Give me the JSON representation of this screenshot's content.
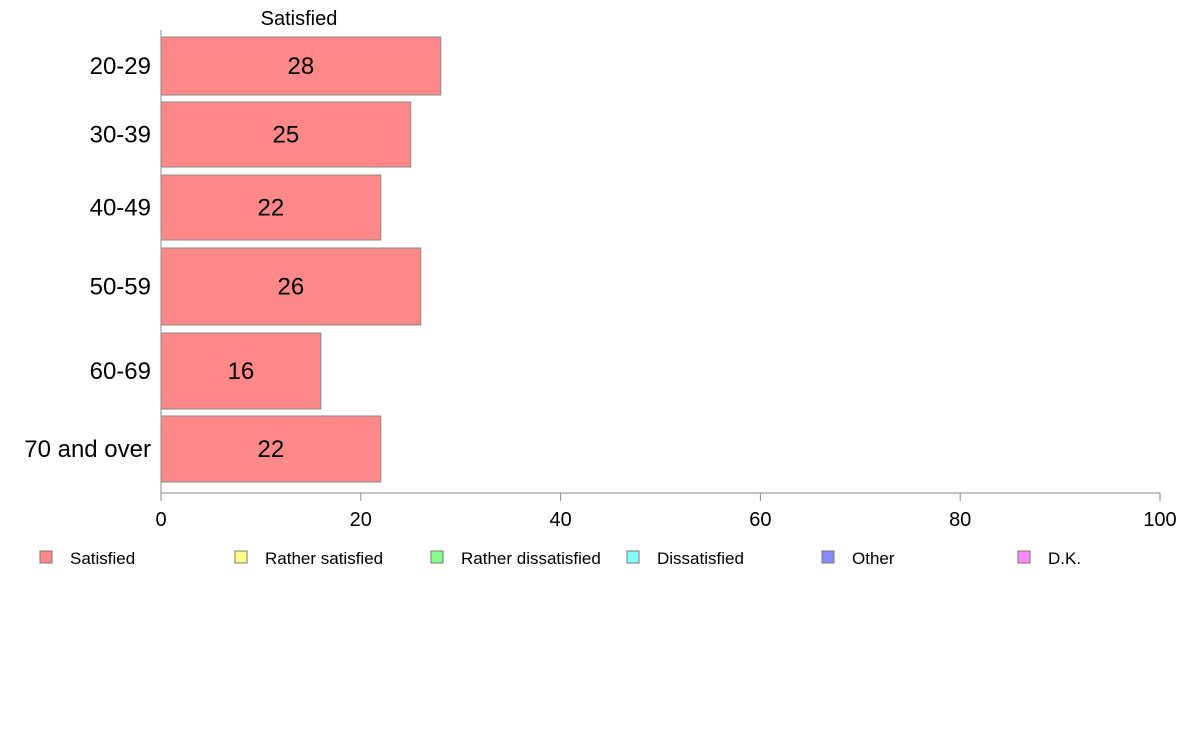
{
  "chart_data": {
    "type": "bar",
    "orientation": "horizontal",
    "title": "Satisfied",
    "categories": [
      "20-29",
      "30-39",
      "40-49",
      "50-59",
      "60-69",
      "70 and over"
    ],
    "series": [
      {
        "name": "Satisfied",
        "values": [
          28,
          25,
          22,
          26,
          16,
          22
        ],
        "color": "#ff8888"
      }
    ],
    "xlim": [
      0,
      100
    ],
    "xticks": [
      0,
      20,
      40,
      60,
      80,
      100
    ],
    "xlabel": "",
    "ylabel": "",
    "grid": false,
    "legend_position": "bottom",
    "legend": [
      {
        "label": "Satisfied",
        "color": "#ff8888"
      },
      {
        "label": "Rather satisfied",
        "color": "#ffff88"
      },
      {
        "label": "Rather dissatisfied",
        "color": "#88ff88"
      },
      {
        "label": "Dissatisfied",
        "color": "#88ffff"
      },
      {
        "label": "Other",
        "color": "#8888ff"
      },
      {
        "label": "D.K.",
        "color": "#ff88ff"
      }
    ]
  }
}
